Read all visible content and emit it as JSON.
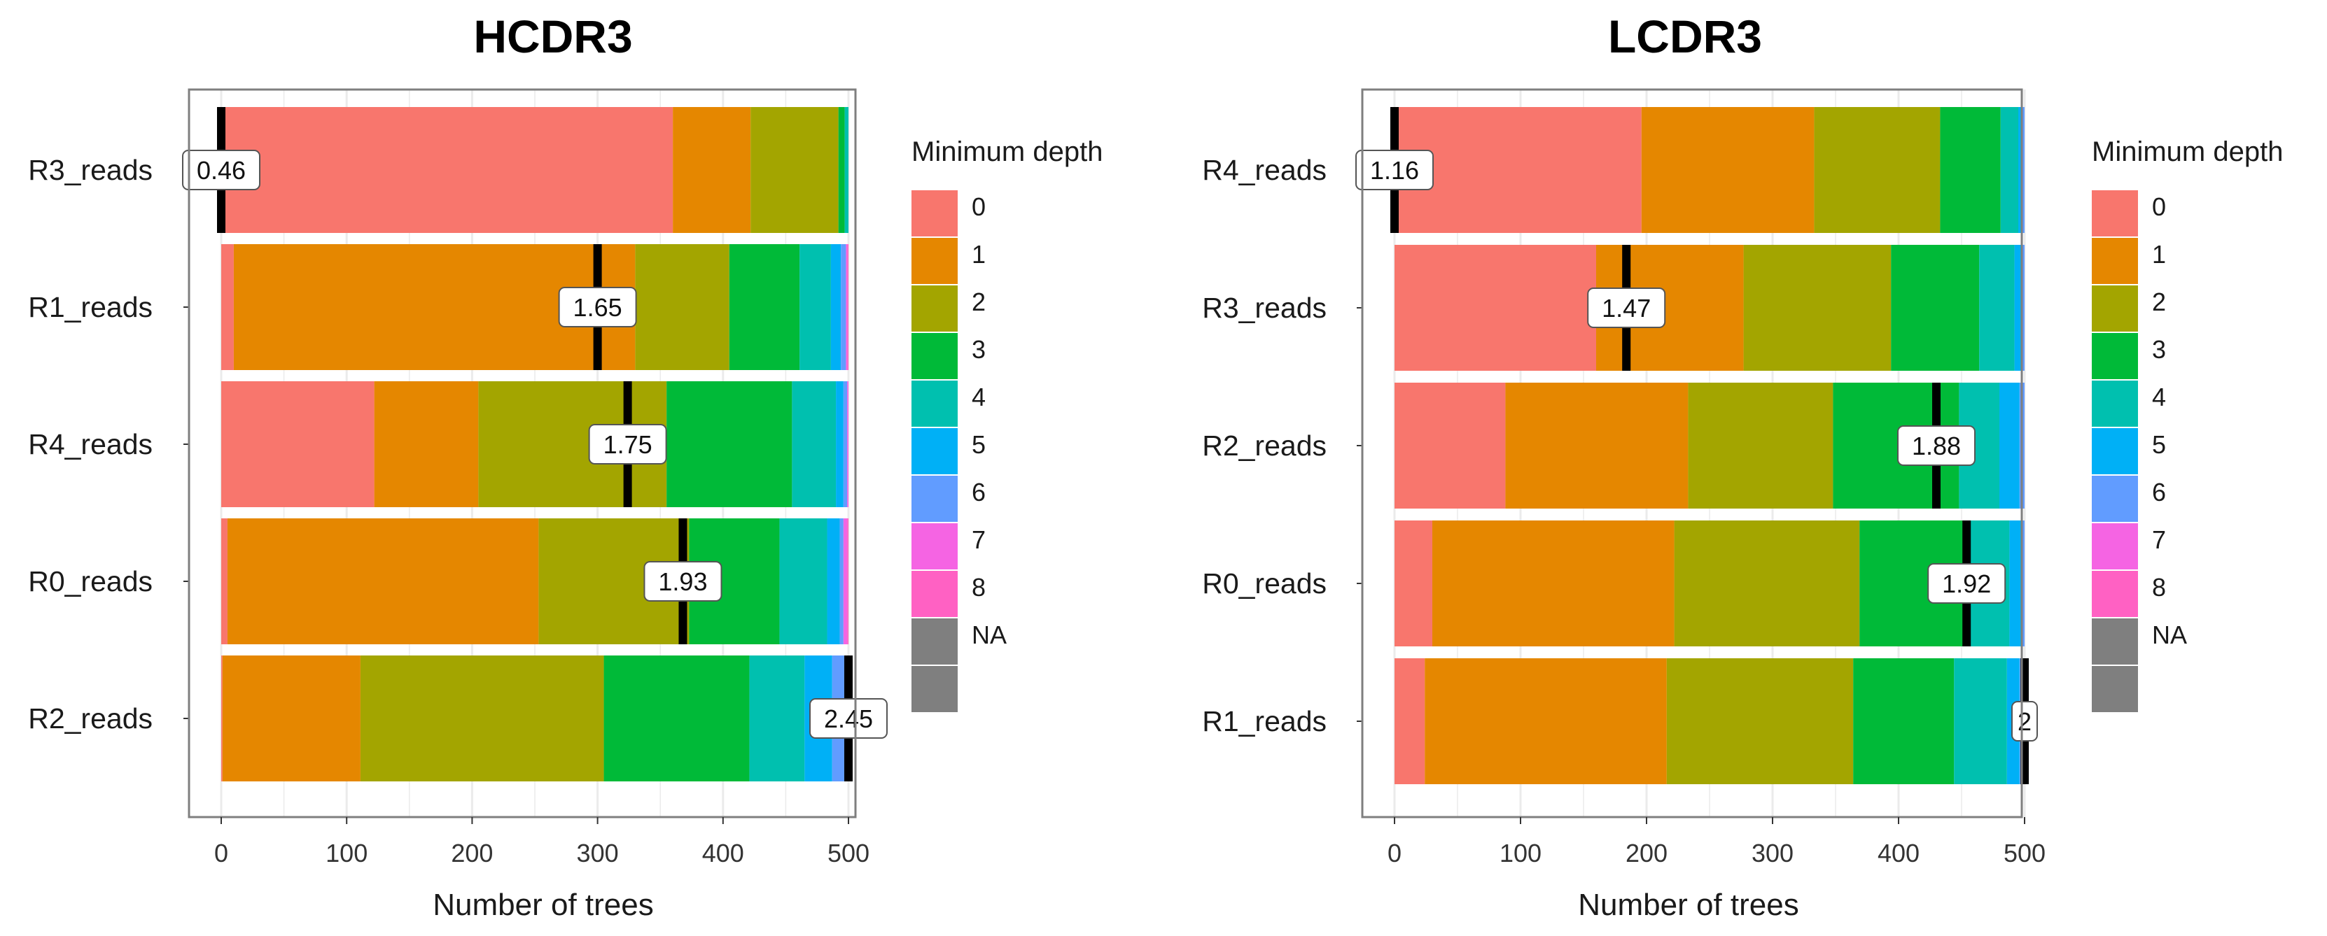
{
  "colors": {
    "depth": [
      "#F8766D",
      "#E58700",
      "#A3A500",
      "#00BA38",
      "#00C0AF",
      "#00B0F6",
      "#619CFF",
      "#F564E3",
      "#FF61C3",
      "#7F7F7F"
    ],
    "mean_line": "#000000",
    "grid": "#EBEBEB",
    "panel_border": "#7F7F7F"
  },
  "chart_data": [
    {
      "type": "bar",
      "orientation": "horizontal",
      "stacked": true,
      "title": "HCDR3",
      "xlabel": "Number of trees",
      "ylabel": "",
      "xlim": [
        0,
        500
      ],
      "xticks": [
        "0",
        "100",
        "200",
        "300",
        "400",
        "500"
      ],
      "categories": [
        "R3_reads",
        "R1_reads",
        "R4_reads",
        "R0_reads",
        "R2_reads"
      ],
      "series": [
        {
          "name": "0",
          "values": [
            360,
            10,
            122,
            5,
            1
          ]
        },
        {
          "name": "1",
          "values": [
            62,
            320,
            83,
            248,
            110
          ]
        },
        {
          "name": "2",
          "values": [
            70,
            75,
            150,
            120,
            194
          ]
        },
        {
          "name": "3",
          "values": [
            5,
            56,
            100,
            72,
            116
          ]
        },
        {
          "name": "4",
          "values": [
            3,
            25,
            35,
            38,
            44
          ]
        },
        {
          "name": "5",
          "values": [
            0,
            8,
            6,
            10,
            22
          ]
        },
        {
          "name": "6",
          "values": [
            0,
            4,
            3,
            3,
            11
          ]
        },
        {
          "name": "7",
          "values": [
            0,
            1,
            1,
            3,
            2
          ]
        },
        {
          "name": "8",
          "values": [
            0,
            1,
            0,
            1,
            0
          ]
        },
        {
          "name": "NA",
          "values": [
            0,
            0,
            0,
            0,
            0
          ]
        }
      ],
      "mean_min_depth": [
        {
          "category": "R3_reads",
          "value": 0,
          "label": "0.46"
        },
        {
          "category": "R1_reads",
          "value": 300,
          "label": "1.65"
        },
        {
          "category": "R4_reads",
          "value": 324,
          "label": "1.75"
        },
        {
          "category": "R0_reads",
          "value": 368,
          "label": "1.93"
        },
        {
          "category": "R2_reads",
          "value": 500,
          "label": "2.45"
        }
      ],
      "legend": {
        "title": "Minimum depth",
        "position": "right",
        "entries": [
          "0",
          "1",
          "2",
          "3",
          "4",
          "5",
          "6",
          "7",
          "8",
          "NA"
        ]
      }
    },
    {
      "type": "bar",
      "orientation": "horizontal",
      "stacked": true,
      "title": "LCDR3",
      "xlabel": "Number of trees",
      "ylabel": "",
      "xlim": [
        0,
        500
      ],
      "xticks": [
        "0",
        "100",
        "200",
        "300",
        "400",
        "500"
      ],
      "categories": [
        "R4_reads",
        "R3_reads",
        "R2_reads",
        "R0_reads",
        "R1_reads"
      ],
      "series": [
        {
          "name": "0",
          "values": [
            196,
            160,
            88,
            30,
            24
          ]
        },
        {
          "name": "1",
          "values": [
            137,
            117,
            145,
            192,
            192
          ]
        },
        {
          "name": "2",
          "values": [
            100,
            117,
            115,
            147,
            148
          ]
        },
        {
          "name": "3",
          "values": [
            48,
            70,
            100,
            86,
            80
          ]
        },
        {
          "name": "4",
          "values": [
            14,
            28,
            32,
            33,
            42
          ]
        },
        {
          "name": "5",
          "values": [
            3,
            6,
            16,
            10,
            10
          ]
        },
        {
          "name": "6",
          "values": [
            2,
            2,
            4,
            2,
            4
          ]
        },
        {
          "name": "7",
          "values": [
            0,
            0,
            0,
            0,
            0
          ]
        },
        {
          "name": "8",
          "values": [
            0,
            0,
            0,
            0,
            0
          ]
        },
        {
          "name": "NA",
          "values": [
            0,
            0,
            0,
            0,
            0
          ]
        }
      ],
      "mean_min_depth": [
        {
          "category": "R4_reads",
          "value": 0,
          "label": "1.16"
        },
        {
          "category": "R3_reads",
          "value": 184,
          "label": "1.47"
        },
        {
          "category": "R2_reads",
          "value": 430,
          "label": "1.88"
        },
        {
          "category": "R0_reads",
          "value": 454,
          "label": "1.92"
        },
        {
          "category": "R1_reads",
          "value": 500,
          "label": "2"
        }
      ],
      "legend": {
        "title": "Minimum depth",
        "position": "right",
        "entries": [
          "0",
          "1",
          "2",
          "3",
          "4",
          "5",
          "6",
          "7",
          "8",
          "NA"
        ]
      }
    }
  ]
}
